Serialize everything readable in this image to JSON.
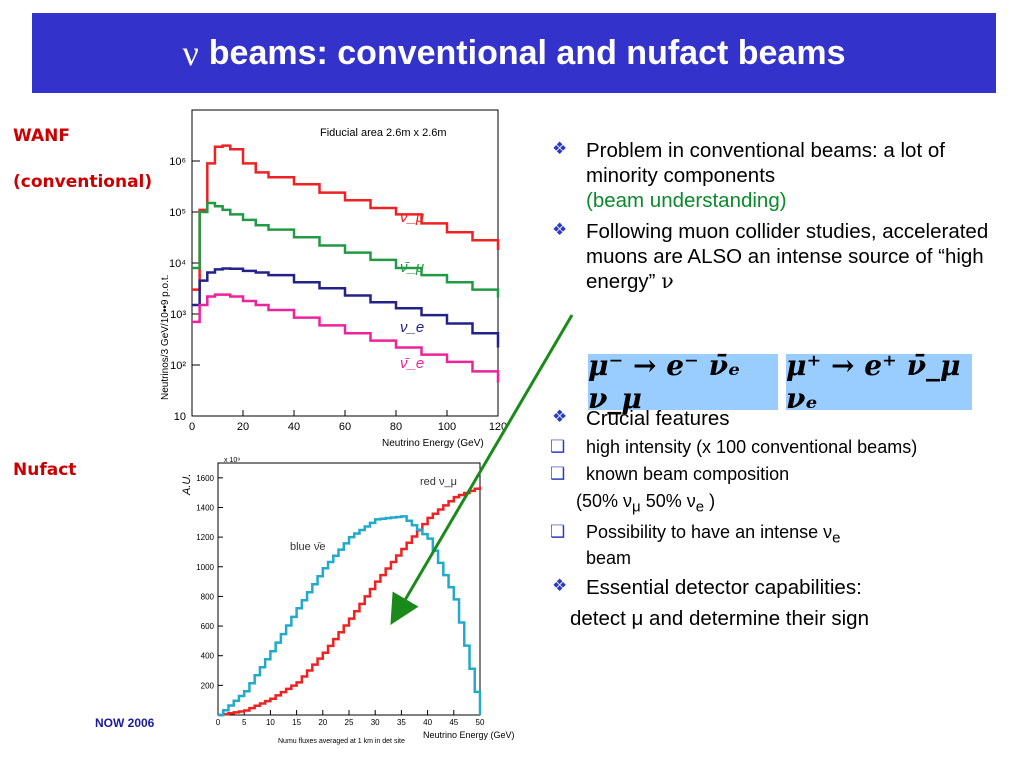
{
  "slide": {
    "title_symbol": "ν",
    "title_text": "beams: conventional  and nufact beams",
    "label_wanf": "WANF",
    "label_conventional": "(conventional)",
    "label_nufact": "Nufact",
    "footer": "NOW 2006"
  },
  "colors": {
    "title_bg": "#3333cc",
    "red": "#ee2222",
    "green": "#229944",
    "navy": "#222288",
    "magenta": "#ee2299",
    "cyan": "#22aacc",
    "arrow": "#1a8a1a"
  },
  "bullets": {
    "b1_text": "Problem in conventional beams: a lot of minority components",
    "b1_green": "(beam understanding)",
    "b2_text": "Following muon collider studies, accelerated muons are ALSO an intense source of “high energy”",
    "b2_symbol": "ν",
    "eq1": "μ⁻ → e⁻ ν̄ₑ ν_μ",
    "eq2": "μ⁺ → e⁺ ν̄_μ νₑ",
    "b3_text": "Crucial features",
    "s1": "high intensity (x 100 conventional beams)",
    "s2": "known beam composition",
    "s2_detail": "(50% ν",
    "s2_detail_mu": "μ",
    "s2_detail_mid": "  50% ν",
    "s2_detail_e": "e",
    "s2_detail_end": " )",
    "s3_text": "Possibility to have an intense ν",
    "s3_sub": "e",
    "s3_end": "beam",
    "b4_text": "Essential detector capabilities:",
    "b4_line2": "detect μ and determine their sign"
  },
  "chart_data": [
    {
      "type": "line",
      "title": "Fiducial area 2.6m x 2.6m",
      "xlabel": "Neutrino Energy (GeV)",
      "ylabel": "Neutrinos/3 GeV/10••9 p.o.t.",
      "xlim": [
        0,
        120
      ],
      "ylim": [
        10,
        10000000
      ],
      "yscale": "log",
      "x_ticks": [
        "0",
        "20",
        "40",
        "60",
        "80",
        "100",
        "120"
      ],
      "y_ticks": [
        "10",
        "10²",
        "10³",
        "10⁴",
        "10⁵",
        "10⁶"
      ],
      "series": [
        {
          "name": "ν_μ",
          "x": [
            0,
            3,
            6,
            9,
            12,
            15,
            20,
            25,
            30,
            40,
            50,
            60,
            70,
            80,
            90,
            100,
            110,
            120
          ],
          "y": [
            3000,
            110000,
            900000,
            1900000,
            2000000,
            1700000,
            900000,
            600000,
            480000,
            350000,
            240000,
            170000,
            120000,
            90000,
            60000,
            40000,
            28000,
            18000
          ]
        },
        {
          "name": "ν̄_μ",
          "x": [
            0,
            3,
            6,
            9,
            12,
            15,
            20,
            25,
            30,
            40,
            50,
            60,
            70,
            80,
            90,
            100,
            110,
            120
          ],
          "y": [
            8000,
            100000,
            150000,
            130000,
            110000,
            90000,
            70000,
            55000,
            45000,
            32000,
            22000,
            16000,
            11500,
            8000,
            5800,
            4200,
            3000,
            2100
          ]
        },
        {
          "name": "ν_e",
          "x": [
            0,
            3,
            6,
            9,
            12,
            15,
            20,
            25,
            30,
            40,
            50,
            60,
            70,
            80,
            90,
            100,
            110,
            120
          ],
          "y": [
            1500,
            4500,
            6500,
            7500,
            7800,
            7700,
            7000,
            6500,
            5800,
            4200,
            3200,
            2300,
            1700,
            1300,
            950,
            650,
            420,
            220
          ]
        },
        {
          "name": "ν̄_e",
          "x": [
            0,
            3,
            6,
            9,
            12,
            15,
            20,
            25,
            30,
            40,
            50,
            60,
            70,
            80,
            90,
            100,
            110,
            120
          ],
          "y": [
            700,
            1500,
            2200,
            2400,
            2400,
            2200,
            1800,
            1500,
            1200,
            850,
            600,
            420,
            300,
            220,
            160,
            115,
            75,
            45
          ]
        }
      ]
    },
    {
      "type": "line",
      "xlabel": "Neutrino Energy (GeV)",
      "ylabel": "A.U.",
      "y_multiplier": "x 10⁹",
      "xlim": [
        0,
        50
      ],
      "ylim": [
        0,
        1700
      ],
      "x_ticks": [
        "0",
        "5",
        "10",
        "15",
        "20",
        "25",
        "30",
        "35",
        "40",
        "45",
        "50"
      ],
      "y_ticks": [
        "200",
        "400",
        "600",
        "800",
        "1000",
        "1200",
        "1400",
        "1600"
      ],
      "caption": "Numu fluxes averaged at 1 km in det site",
      "series": [
        {
          "name": "red ν_μ",
          "x": [
            0,
            5,
            10,
            15,
            20,
            25,
            30,
            35,
            40,
            45,
            50
          ],
          "y": [
            0,
            30,
            110,
            220,
            420,
            650,
            900,
            1120,
            1330,
            1470,
            1540
          ]
        },
        {
          "name": "blue ν̄e",
          "x": [
            0,
            5,
            10,
            15,
            20,
            25,
            30,
            35,
            40,
            45,
            50
          ],
          "y": [
            0,
            160,
            430,
            720,
            990,
            1200,
            1320,
            1340,
            1190,
            780,
            0
          ]
        }
      ]
    }
  ]
}
